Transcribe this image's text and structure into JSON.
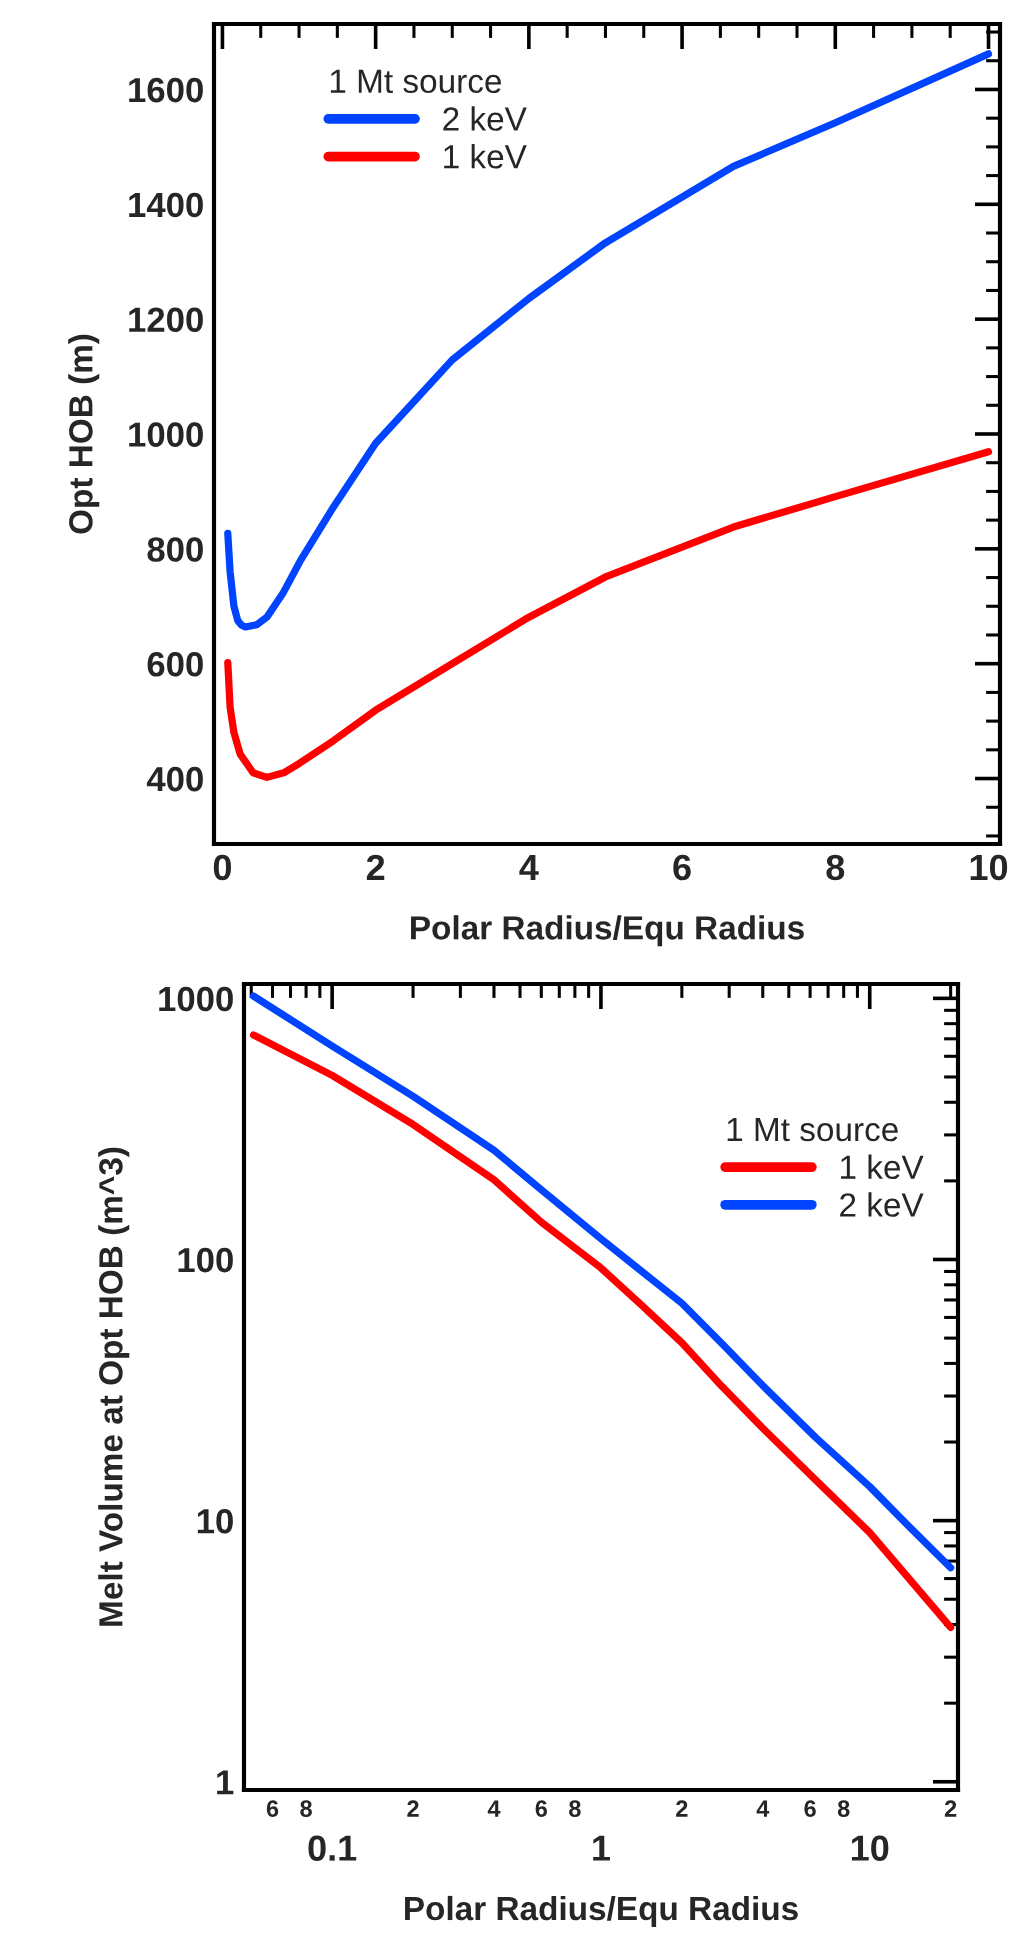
{
  "chart_data": [
    {
      "type": "line",
      "xlabel": "Polar Radius/Equ Radius",
      "ylabel": "Opt HOB (m)",
      "legend_title": "1 Mt source",
      "legend": "top left",
      "xlim": [
        -0.11,
        10.15
      ],
      "ylim": [
        286,
        1714
      ],
      "xticks": [
        0,
        2,
        4,
        6,
        8,
        10
      ],
      "yticks": [
        400,
        600,
        800,
        1000,
        1200,
        1400,
        1600
      ],
      "grid": false,
      "series": [
        {
          "name": "2 keV",
          "color": "#0044ff",
          "x": [
            0.07,
            0.1,
            0.15,
            0.2,
            0.25,
            0.3,
            0.45,
            0.58,
            0.8,
            1.02,
            1.45,
            2.0,
            3.0,
            4.0,
            5.0,
            6.67,
            8.0,
            10.0
          ],
          "values": [
            827,
            760,
            700,
            675,
            667,
            664,
            668,
            681,
            725,
            780,
            873,
            984,
            1129,
            1236,
            1333,
            1466,
            1542,
            1662
          ]
        },
        {
          "name": "1 keV",
          "color": "#ff0000",
          "x": [
            0.07,
            0.1,
            0.15,
            0.23,
            0.4,
            0.58,
            0.8,
            1.0,
            1.45,
            2.0,
            3.0,
            4.0,
            5.0,
            6.67,
            8.0,
            10.0
          ],
          "values": [
            602,
            524,
            480,
            443,
            410,
            402,
            410,
            426,
            466,
            519,
            600,
            681,
            751,
            838,
            891,
            969
          ]
        }
      ]
    },
    {
      "type": "line",
      "xlabel": "Polar Radius/Equ Radius",
      "ylabel": "Melt Volume at Opt HOB (m^3)",
      "legend_title": "1 Mt source",
      "legend": "top right",
      "log": "xy",
      "xlim": [
        0.047,
        21.3
      ],
      "ylim": [
        0.93,
        1135
      ],
      "grid": false,
      "xticks": [
        0.1,
        1,
        10
      ],
      "annotations": [
        "6",
        "8",
        "2",
        "4",
        "6",
        "8",
        "2",
        "4",
        "6",
        "8",
        "2"
      ],
      "yticks": [
        1,
        10,
        100,
        1000
      ],
      "series": [
        {
          "name": "1 keV",
          "color": "#ff0000",
          "x": [
            0.051,
            0.1,
            0.2,
            0.4,
            0.6,
            1,
            1.4,
            2,
            2.8,
            4,
            6.3,
            10,
            14,
            20
          ],
          "values": [
            724,
            507,
            329,
            202,
            139,
            92.8,
            67.6,
            48,
            32.9,
            22.6,
            14.3,
            9.0,
            6.0,
            3.9
          ]
        },
        {
          "name": "2 keV",
          "color": "#0044ff",
          "x": [
            0.051,
            0.1,
            0.2,
            0.4,
            0.6,
            1,
            1.4,
            2,
            2.8,
            4,
            6.3,
            10,
            14,
            20
          ],
          "values": [
            1020,
            657,
            422,
            262,
            185,
            120,
            91,
            68,
            48,
            32.9,
            20.8,
            13.5,
            9.5,
            6.6
          ]
        }
      ]
    }
  ]
}
